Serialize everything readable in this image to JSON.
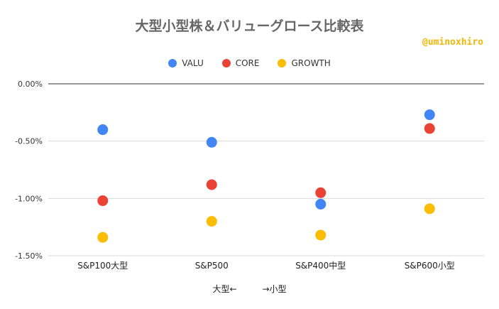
{
  "chart_data": {
    "type": "scatter",
    "title": "大型小型株＆バリューグロース比較表",
    "watermark": "@uminoxhiro",
    "xlabel": "大型←　　　→小型",
    "ylabel": "",
    "categories": [
      "S&P100大型",
      "S&P500",
      "S&P400中型",
      "S&P600小型"
    ],
    "yticks": [
      "0.00%",
      "-0.50%",
      "-1.00%",
      "-1.50%"
    ],
    "ylim": [
      -1.5,
      0.0
    ],
    "legend_position": "top",
    "grid": true,
    "series": [
      {
        "name": "VALU",
        "color": "#4285f4",
        "values": [
          -0.4,
          -0.51,
          -1.05,
          -0.27
        ]
      },
      {
        "name": "CORE",
        "color": "#ea4335",
        "values": [
          -1.02,
          -0.88,
          -0.95,
          -0.39
        ]
      },
      {
        "name": "GROWTH",
        "color": "#fbbc04",
        "values": [
          -1.34,
          -1.2,
          -1.32,
          -1.09
        ]
      }
    ]
  }
}
